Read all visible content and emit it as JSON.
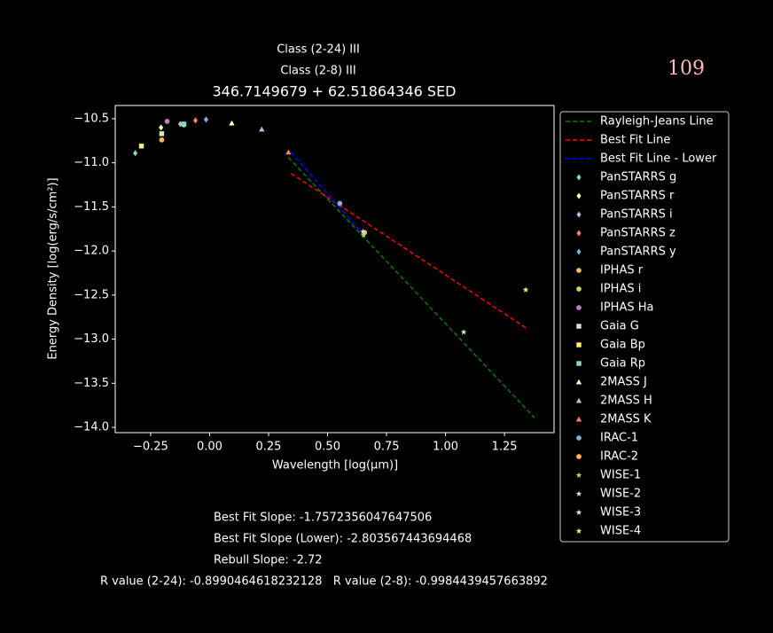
{
  "chart_data": {
    "type": "scatter",
    "titles": [
      "Class (2-24) III",
      "Class (2-8) III"
    ],
    "title": "346.7149679 + 62.51864346 SED",
    "corner_label": "109",
    "x_label": "Wavelength [log(μm)]",
    "y_label": "Energy Density [log(erg/s/cm²)]",
    "xlim": [
      -0.4,
      1.46
    ],
    "ylim": [
      -14.06,
      -10.35
    ],
    "xticks": [
      {
        "value": -0.25,
        "label": "−0.25"
      },
      {
        "value": 0,
        "label": "0.00"
      },
      {
        "value": 0.25,
        "label": "0.25"
      },
      {
        "value": 0.5,
        "label": "0.50"
      },
      {
        "value": 0.75,
        "label": "0.75"
      },
      {
        "value": 1,
        "label": "1.00"
      },
      {
        "value": 1.25,
        "label": "1.25"
      }
    ],
    "yticks": [
      {
        "value": -10.5,
        "label": "−10.5"
      },
      {
        "value": -11,
        "label": "−11.0"
      },
      {
        "value": -11.5,
        "label": "−11.5"
      },
      {
        "value": -12,
        "label": "−12.0"
      },
      {
        "value": -12.5,
        "label": "−12.5"
      },
      {
        "value": -13,
        "label": "−13.0"
      },
      {
        "value": -13.5,
        "label": "−13.5"
      },
      {
        "value": -14,
        "label": "−14.0"
      }
    ],
    "legend": "outside right",
    "line_series": [
      {
        "name": "Rayleigh-Jeans Line",
        "color": "#008000",
        "x": [
          0.334,
          1.377
        ],
        "values": [
          -10.94,
          -13.89
        ]
      },
      {
        "name": "Best Fit Line",
        "color": "#ff0000",
        "x": [
          0.345,
          1.34
        ],
        "values": [
          -11.12,
          -12.87
        ]
      },
      {
        "name": "Best Fit Line - Lower",
        "color": "#0000ff",
        "x": [
          0.345,
          0.657
        ],
        "values": [
          -10.88,
          -11.83
        ]
      }
    ],
    "series": [
      {
        "name": "PanSTARRS g",
        "color": "#8dd3c7",
        "marker": "diamond",
        "x": [
          -0.315
        ],
        "values": [
          -10.89
        ]
      },
      {
        "name": "PanSTARRS r",
        "color": "#ffffb3",
        "marker": "diamond",
        "x": [
          -0.206
        ],
        "values": [
          -10.6
        ]
      },
      {
        "name": "PanSTARRS i",
        "color": "#bebada",
        "marker": "diamond",
        "x": [
          -0.124
        ],
        "values": [
          -10.56
        ]
      },
      {
        "name": "PanSTARRS z",
        "color": "#fb8072",
        "marker": "diamond",
        "x": [
          -0.06
        ],
        "values": [
          -10.52
        ]
      },
      {
        "name": "PanSTARRS y",
        "color": "#80b1d3",
        "marker": "diamond",
        "x": [
          -0.015
        ],
        "values": [
          -10.51
        ]
      },
      {
        "name": "IPHAS r",
        "color": "#fdb462",
        "marker": "circle",
        "x": [
          -0.203
        ],
        "values": [
          -10.74
        ]
      },
      {
        "name": "IPHAS i",
        "color": "#b3de69",
        "marker": "circle",
        "x": [
          -0.109
        ],
        "values": [
          -10.57
        ]
      },
      {
        "name": "IPHAS Ha",
        "color": "#bc80bd",
        "marker": "circle",
        "x": [
          -0.18
        ],
        "values": [
          -10.53
        ]
      },
      {
        "name": "Gaia G",
        "color": "#ccebc5",
        "marker": "square",
        "x": [
          -0.203
        ],
        "values": [
          -10.67
        ]
      },
      {
        "name": "Gaia Bp",
        "color": "#ffed6f",
        "marker": "square",
        "x": [
          -0.289
        ],
        "values": [
          -10.81
        ]
      },
      {
        "name": "Gaia Rp",
        "color": "#8dd3c7",
        "marker": "square",
        "x": [
          -0.109
        ],
        "values": [
          -10.56
        ]
      },
      {
        "name": "2MASS J",
        "color": "#ffffb3",
        "marker": "triangle",
        "x": [
          0.094
        ],
        "values": [
          -10.55
        ]
      },
      {
        "name": "2MASS H",
        "color": "#bebada",
        "marker": "triangle",
        "x": [
          0.221
        ],
        "values": [
          -10.62
        ]
      },
      {
        "name": "2MASS K",
        "color": "#fb8072",
        "marker": "triangle",
        "x": [
          0.334
        ],
        "values": [
          -10.88
        ]
      },
      {
        "name": "IRAC-1",
        "color": "#80b1d3",
        "marker": "circle",
        "x": [
          0.552
        ],
        "values": [
          -11.46
        ]
      },
      {
        "name": "IRAC-2",
        "color": "#fdb462",
        "marker": "circle",
        "x": [
          0.657
        ],
        "values": [
          -11.79
        ]
      },
      {
        "name": "WISE-1",
        "color": "#b3de69",
        "marker": "star",
        "x": [
          0.653
        ],
        "values": [
          -11.82
        ]
      },
      {
        "name": "WISE-2",
        "color": "#fccde5",
        "marker": "star",
        "x": [
          0.65
        ],
        "values": [
          -11.78
        ]
      },
      {
        "name": "WISE-3",
        "color": "#d9f0d3",
        "marker": "star",
        "x": [
          1.077
        ],
        "values": [
          -12.92
        ]
      },
      {
        "name": "WISE-4",
        "color": "#ffed6f",
        "marker": "star",
        "x": [
          1.34
        ],
        "values": [
          -12.44
        ]
      }
    ],
    "notes": [
      "Best Fit Slope: -1.7572356047647506",
      "Best Fit Slope (Lower): -2.803567443694468",
      "Rebull Slope: -2.72",
      "R value (2-24): -0.8990464618232128   R value (2-8): -0.9984439457663892"
    ]
  }
}
